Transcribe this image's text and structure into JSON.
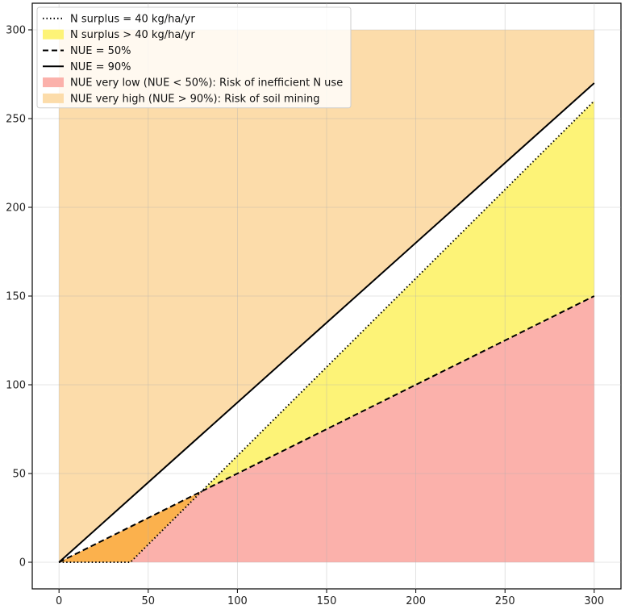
{
  "chart_data": {
    "type": "area",
    "title": "",
    "xlabel": "",
    "ylabel": "",
    "xlim": [
      -15,
      315
    ],
    "ylim": [
      -15,
      315
    ],
    "x_ticks": [
      0,
      50,
      100,
      150,
      200,
      250,
      300
    ],
    "y_ticks": [
      0,
      50,
      100,
      150,
      200,
      250,
      300
    ],
    "grid": true,
    "legend_position": "top-left",
    "lines": [
      {
        "name": "N surplus = 40 kg/ha/yr",
        "style": "dotted",
        "color": "#000000",
        "x": [
          0,
          40,
          300
        ],
        "y": [
          0,
          0,
          260
        ]
      },
      {
        "name": "NUE = 50%",
        "style": "dashed",
        "color": "#000000",
        "x": [
          0,
          300
        ],
        "y": [
          0,
          150
        ]
      },
      {
        "name": "NUE = 90%",
        "style": "solid",
        "color": "#000000",
        "x": [
          0,
          300
        ],
        "y": [
          0,
          270
        ]
      }
    ],
    "areas": [
      {
        "name": "NUE very high (NUE > 90%): Risk of soil mining",
        "color": "#fcdcaa",
        "x": [
          0,
          300,
          300,
          0
        ],
        "y": [
          0,
          270,
          300,
          300
        ]
      },
      {
        "name": "NUE very low (NUE < 50%): Risk of inefficient N use",
        "color": "#fbb1ab",
        "x": [
          0,
          300,
          300
        ],
        "y": [
          0,
          150,
          0
        ]
      },
      {
        "name": "N surplus > 40 kg/ha/yr",
        "color": "#fdf377",
        "x": [
          80,
          300,
          300
        ],
        "y": [
          40,
          150,
          260
        ]
      },
      {
        "name": "",
        "color": "#fbb14d",
        "x": [
          0,
          40,
          80
        ],
        "y": [
          0,
          0,
          40
        ]
      }
    ],
    "legend": [
      {
        "label": "N surplus = 40 kg/ha/yr",
        "kind": "line",
        "style": "dotted",
        "color": "#000000"
      },
      {
        "label": "N surplus > 40 kg/ha/yr",
        "kind": "patch",
        "color": "#fdf377"
      },
      {
        "label": "NUE = 50%",
        "kind": "line",
        "style": "dashed",
        "color": "#000000"
      },
      {
        "label": "NUE = 90%",
        "kind": "line",
        "style": "solid",
        "color": "#000000"
      },
      {
        "label": "NUE very low (NUE < 50%): Risk of inefficient N use",
        "kind": "patch",
        "color": "#fbb1ab"
      },
      {
        "label": "NUE very high (NUE > 90%): Risk of soil mining",
        "kind": "patch",
        "color": "#fcdcaa"
      }
    ]
  }
}
